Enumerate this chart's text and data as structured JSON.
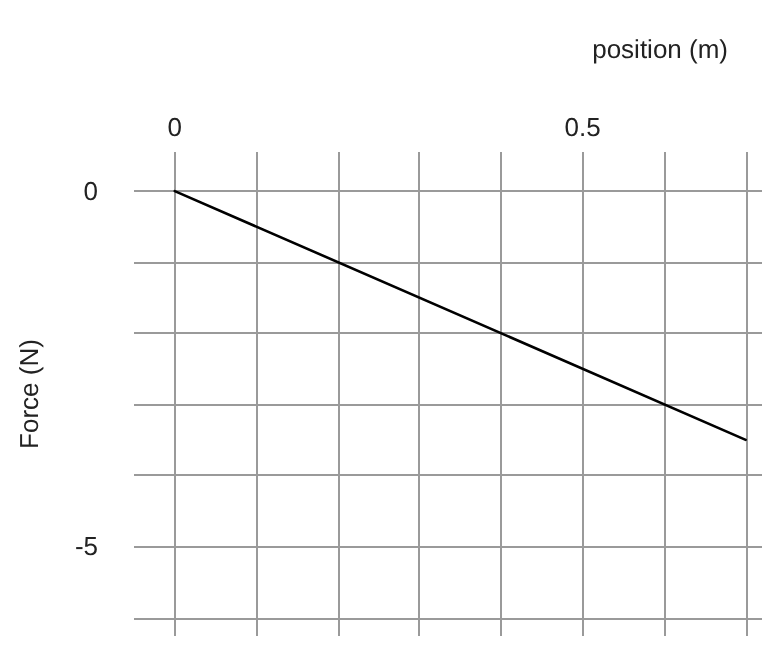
{
  "chart_data": {
    "type": "line",
    "xlabel": "position (m)",
    "ylabel": "Force (N)",
    "x": [
      0,
      0.7
    ],
    "series": [
      {
        "color": "#000000",
        "values": [
          0,
          -3.5
        ]
      }
    ],
    "xlim": [
      -0.05,
      0.72
    ],
    "xticks": [
      0,
      {
        "value": 0.1,
        "label": null
      },
      {
        "value": 0.2,
        "label": null
      },
      {
        "value": 0.3,
        "label": null
      },
      {
        "value": 0.4,
        "label": null
      },
      0.5,
      {
        "value": 0.6,
        "label": null
      },
      {
        "value": 0.7,
        "label": null
      }
    ],
    "ylim": [
      -6.26,
      0.55
    ],
    "yticks": [
      0,
      {
        "value": -1,
        "label": null
      },
      {
        "value": -2,
        "label": null
      },
      {
        "value": -3,
        "label": null
      },
      {
        "value": -4,
        "label": null
      },
      -5,
      {
        "value": -6,
        "label": null
      }
    ],
    "grid": true,
    "marker": "none",
    "line_style": "solid"
  }
}
